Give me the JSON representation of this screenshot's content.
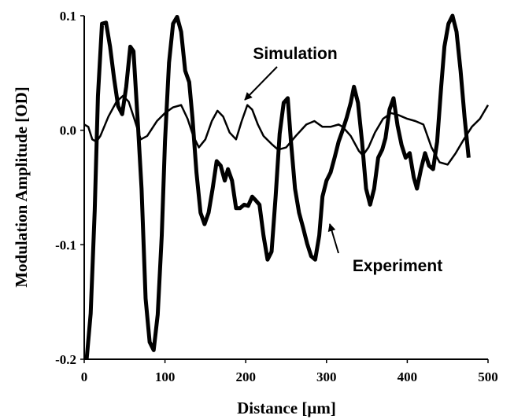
{
  "chart_data": {
    "type": "line",
    "xlabel": "Distance [µm]",
    "ylabel": "Modulation Amplitude [OD]",
    "xlim": [
      0,
      500
    ],
    "xticks": [
      0,
      100,
      200,
      300,
      400,
      500
    ],
    "ylim": [
      -0.2,
      0.1
    ],
    "yticks": [
      -0.2,
      -0.1,
      {
        "value": 0,
        "label": "0.0"
      },
      0.1
    ],
    "series": [
      {
        "name": "Experiment",
        "color": "#000000",
        "line_width": 5,
        "x": [
          3,
          8,
          13,
          17,
          22,
          27,
          32,
          37,
          42,
          47,
          52,
          57,
          61,
          66,
          71,
          76,
          81,
          86,
          91,
          96,
          100,
          105,
          110,
          115,
          120,
          125,
          130,
          134,
          139,
          144,
          149,
          154,
          159,
          164,
          169,
          174,
          178,
          183,
          188,
          193,
          198,
          203,
          208,
          212,
          217,
          222,
          227,
          232,
          237,
          242,
          247,
          252,
          256,
          261,
          266,
          271,
          276,
          281,
          286,
          291,
          295,
          300,
          305,
          310,
          315,
          320,
          325,
          330,
          334,
          339,
          344,
          349,
          354,
          359,
          364,
          369,
          373,
          378,
          383,
          388,
          393,
          398,
          403,
          408,
          412,
          417,
          422,
          427,
          432,
          437,
          442,
          446,
          451,
          456,
          461,
          466,
          471,
          476
        ],
        "values": [
          -0.2,
          -0.16,
          -0.07,
          0.03,
          0.093,
          0.094,
          0.073,
          0.045,
          0.021,
          0.014,
          0.038,
          0.073,
          0.069,
          0.011,
          -0.051,
          -0.147,
          -0.185,
          -0.192,
          -0.161,
          -0.092,
          -0.01,
          0.059,
          0.093,
          0.099,
          0.086,
          0.052,
          0.042,
          0.011,
          -0.037,
          -0.072,
          -0.082,
          -0.072,
          -0.051,
          -0.027,
          -0.031,
          -0.044,
          -0.034,
          -0.044,
          -0.068,
          -0.068,
          -0.065,
          -0.066,
          -0.058,
          -0.061,
          -0.065,
          -0.092,
          -0.113,
          -0.106,
          -0.058,
          -0.003,
          0.024,
          0.028,
          -0.01,
          -0.051,
          -0.072,
          -0.085,
          -0.099,
          -0.11,
          -0.113,
          -0.092,
          -0.058,
          -0.044,
          -0.037,
          -0.024,
          -0.01,
          0,
          0.011,
          0.024,
          0.038,
          0.024,
          -0.01,
          -0.051,
          -0.065,
          -0.051,
          -0.024,
          -0.017,
          -0.007,
          0.018,
          0.028,
          0.004,
          -0.013,
          -0.024,
          -0.02,
          -0.041,
          -0.051,
          -0.034,
          -0.02,
          -0.031,
          -0.034,
          -0.01,
          0.038,
          0.073,
          0.093,
          0.1,
          0.086,
          0.052,
          0.011,
          -0.024
        ]
      },
      {
        "name": "Simulation",
        "color": "#000000",
        "line_width": 2.5,
        "x": [
          0,
          5,
          10,
          15,
          20,
          30,
          40,
          48,
          55,
          62,
          70,
          78,
          90,
          100,
          110,
          120,
          128,
          135,
          142,
          150,
          158,
          165,
          172,
          180,
          188,
          195,
          202,
          208,
          215,
          222,
          232,
          240,
          250,
          262,
          275,
          285,
          295,
          305,
          315,
          320,
          330,
          340,
          345,
          352,
          360,
          370,
          380,
          390,
          400,
          410,
          420,
          430,
          440,
          450,
          460,
          470,
          480,
          490,
          500
        ],
        "values": [
          0.005,
          0.003,
          -0.008,
          -0.01,
          -0.005,
          0.012,
          0.025,
          0.03,
          0.025,
          0.01,
          -0.008,
          -0.005,
          0.008,
          0.015,
          0.02,
          0.022,
          0.01,
          -0.005,
          -0.015,
          -0.008,
          0.008,
          0.017,
          0.012,
          -0.002,
          -0.008,
          0.008,
          0.022,
          0.018,
          0.005,
          -0.005,
          -0.012,
          -0.017,
          -0.015,
          -0.005,
          0.005,
          0.008,
          0.003,
          0.003,
          0.005,
          0.003,
          -0.005,
          -0.018,
          -0.022,
          -0.015,
          -0.002,
          0.01,
          0.015,
          0.013,
          0.01,
          0.008,
          0.005,
          -0.015,
          -0.028,
          -0.03,
          -0.02,
          -0.008,
          0.003,
          0.01,
          0.022
        ]
      }
    ]
  }
}
